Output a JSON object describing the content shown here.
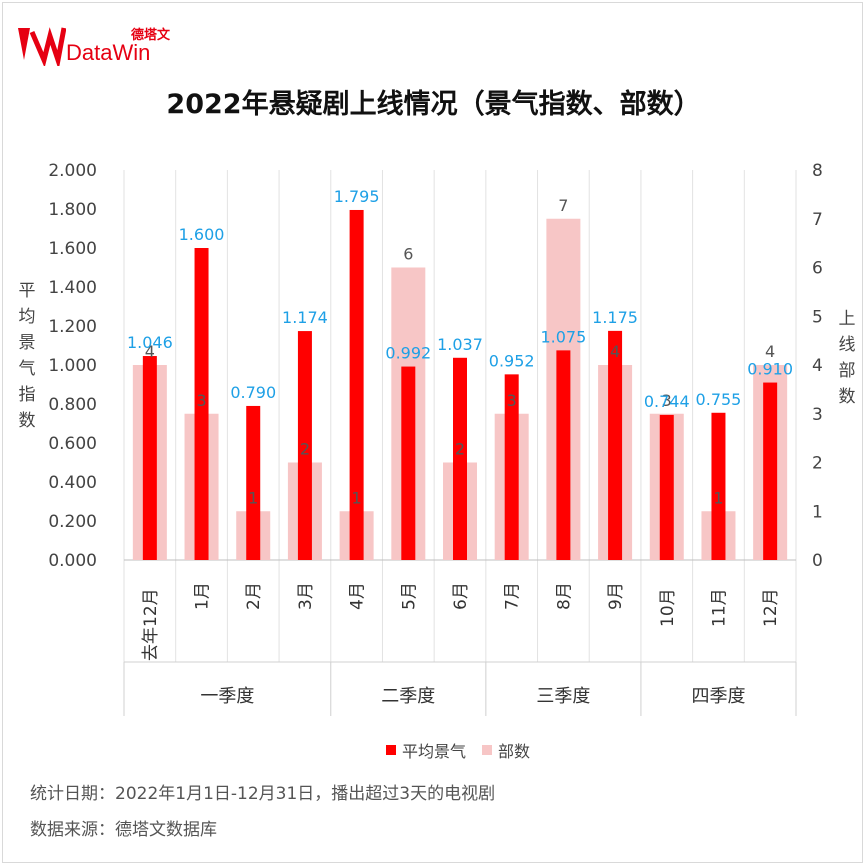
{
  "brand": {
    "cn": "德塔文",
    "en": "DataWin"
  },
  "chart_data": {
    "type": "bar",
    "title": "2022年悬疑剧上线情况（景气指数、部数）",
    "categories": [
      "去年12月",
      "1月",
      "2月",
      "3月",
      "4月",
      "5月",
      "6月",
      "7月",
      "8月",
      "9月",
      "10月",
      "11月",
      "12月"
    ],
    "groups": [
      {
        "label": "一季度",
        "span": 4
      },
      {
        "label": "二季度",
        "span": 3
      },
      {
        "label": "三季度",
        "span": 3
      },
      {
        "label": "四季度",
        "span": 3
      }
    ],
    "series": [
      {
        "name": "平均景气",
        "axis": "left",
        "color": "#ff0000",
        "values": [
          1.046,
          1.6,
          0.79,
          1.174,
          1.795,
          0.992,
          1.037,
          0.952,
          1.075,
          1.175,
          0.744,
          0.755,
          0.91
        ],
        "labels": [
          "1.046",
          "1.600",
          "0.790",
          "1.174",
          "1.795",
          "0.992",
          "1.037",
          "0.952",
          "1.075",
          "1.175",
          "0.744",
          "0.755",
          "0.910"
        ]
      },
      {
        "name": "部数",
        "axis": "right",
        "color": "#f7c6c6",
        "values": [
          4,
          3,
          1,
          2,
          1,
          6,
          2,
          3,
          7,
          4,
          3,
          1,
          4
        ],
        "labels": [
          "4",
          "3",
          "1",
          "2",
          "1",
          "6",
          "2",
          "3",
          "7",
          "4",
          "3",
          "1",
          "4"
        ]
      }
    ],
    "ylabel_left": "平均景气指数",
    "ylabel_right": "上线部数",
    "ylim_left": [
      0,
      2
    ],
    "ylim_right": [
      0,
      8
    ],
    "yticks_left": [
      "0.000",
      "0.200",
      "0.400",
      "0.600",
      "0.800",
      "1.000",
      "1.200",
      "1.400",
      "1.600",
      "1.800",
      "2.000"
    ],
    "yticks_right": [
      "0",
      "1",
      "2",
      "3",
      "4",
      "5",
      "6",
      "7",
      "8"
    ],
    "legend_position": "bottom",
    "label_color": "#1ea0e6"
  },
  "notes": {
    "date": "统计日期：2022年1月1日-12月31日，播出超过3天的电视剧",
    "source": "数据来源：德塔文数据库"
  }
}
